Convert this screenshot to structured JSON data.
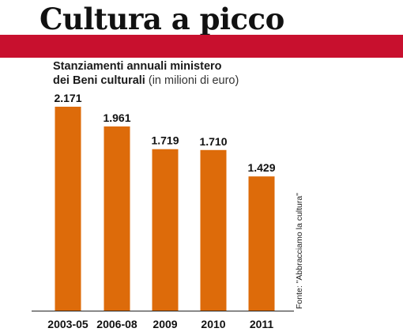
{
  "headline": "Cultura a picco",
  "subtitle_bold_1": "Stanziamenti annuali ministero",
  "subtitle_bold_2": "dei Beni culturali",
  "subtitle_unit": "(in milioni di euro)",
  "source": "Fonte: \"Abbracciamo la cultura\"",
  "colors": {
    "band": "#c8102e",
    "bar": "#dd6b0a",
    "text": "#111111"
  },
  "chart_data": {
    "type": "bar",
    "title": "Cultura a picco",
    "subtitle": "Stanziamenti annuali ministero dei Beni culturali (in milioni di euro)",
    "categories": [
      "2003-05",
      "2006-08",
      "2009",
      "2010",
      "2011"
    ],
    "values": [
      2171,
      1961,
      1719,
      1710,
      1429
    ],
    "value_labels": [
      "2.171",
      "1.961",
      "1.719",
      "1.710",
      "1.429"
    ],
    "xlabel": "",
    "ylabel": "",
    "grid": false,
    "legend": "none"
  }
}
